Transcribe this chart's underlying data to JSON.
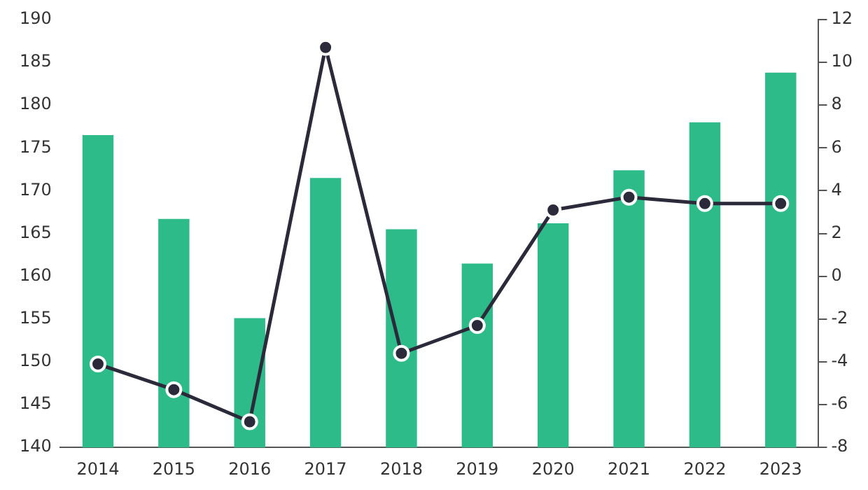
{
  "chart_data": {
    "type": "bar",
    "categories": [
      "2014",
      "2015",
      "2016",
      "2017",
      "2018",
      "2019",
      "2020",
      "2021",
      "2022",
      "2023"
    ],
    "series": [
      {
        "color": "#2dbb8a",
        "values": [
          176.5,
          166.7,
          155.1,
          171.5,
          165.5,
          161.5,
          166.2,
          172.4,
          178,
          183.8
        ]
      },
      {
        "type": "line",
        "axis": "y2",
        "color": "#2b2a3a",
        "values": [
          -4.1,
          -5.3,
          -6.8,
          10.7,
          -3.6,
          -2.3,
          3.1,
          3.7,
          3.4,
          3.4
        ]
      }
    ],
    "ylim": [
      140,
      190
    ],
    "yticks": [
      140,
      145,
      150,
      155,
      160,
      165,
      170,
      175,
      180,
      185,
      190
    ],
    "y2lim": [
      -8,
      12
    ],
    "y2ticks": [
      -8,
      -6,
      -4,
      -2,
      0,
      2,
      4,
      6,
      8,
      10,
      12
    ],
    "grid": false,
    "legend": false,
    "marker": "circle",
    "line_style": "solid"
  }
}
